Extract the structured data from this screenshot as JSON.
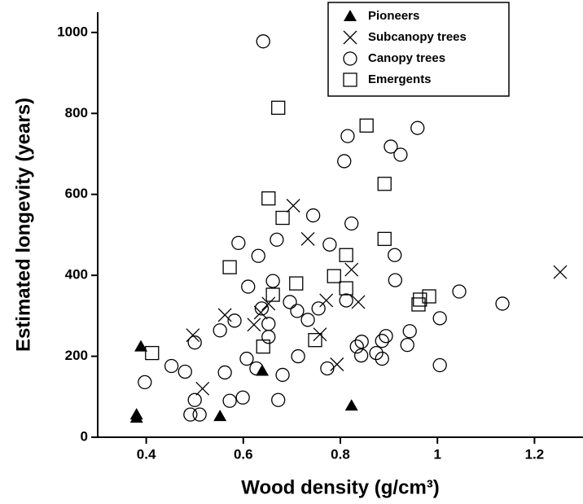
{
  "chart_data": {
    "type": "scatter",
    "x_label": "Wood density (g/cm³)",
    "y_label": "Estimated longevity (years)",
    "xlim": [
      0.3,
      1.3
    ],
    "xticks": [
      0.4,
      0.6,
      0.8,
      1,
      1.2
    ],
    "ylim": [
      0,
      1050
    ],
    "yticks": [
      0,
      200,
      400,
      600,
      800,
      1000
    ],
    "legend": "upper right",
    "series": [
      {
        "name": "Pioneers",
        "marker": "triangle",
        "color": "#000000",
        "x": [
          0.38,
          0.38,
          0.389,
          0.552,
          0.639,
          0.823
        ],
        "values": [
          56,
          48,
          224,
          52,
          164,
          78
        ]
      },
      {
        "name": "Subcanopy trees",
        "marker": "cross",
        "color": "#000000",
        "x": [
          0.496,
          0.516,
          0.562,
          0.622,
          0.636,
          0.652,
          0.703,
          0.733,
          0.758,
          0.771,
          0.793,
          0.823,
          0.837,
          1.253
        ],
        "values": [
          252,
          120,
          302,
          278,
          308,
          330,
          572,
          490,
          254,
          338,
          180,
          414,
          334,
          408
        ]
      },
      {
        "name": "Canopy trees",
        "marker": "circle",
        "color": "#000000",
        "x": [
          0.641,
          0.397,
          0.452,
          0.48,
          0.5,
          0.5,
          0.491,
          0.51,
          0.552,
          0.562,
          0.572,
          0.582,
          0.59,
          0.61,
          0.607,
          0.599,
          0.631,
          0.627,
          0.638,
          0.652,
          0.652,
          0.661,
          0.669,
          0.672,
          0.681,
          0.696,
          0.711,
          0.713,
          0.733,
          0.744,
          0.755,
          0.778,
          0.773,
          0.812,
          0.808,
          0.815,
          0.823,
          0.834,
          0.844,
          0.843,
          0.874,
          0.886,
          0.886,
          0.894,
          0.904,
          0.912,
          0.913,
          0.924,
          0.938,
          0.943,
          0.959,
          1.005,
          1.005,
          1.045,
          1.134
        ],
        "values": [
          978,
          136,
          176,
          162,
          234,
          92,
          56,
          56,
          264,
          160,
          90,
          288,
          480,
          372,
          194,
          98,
          448,
          170,
          318,
          280,
          248,
          386,
          488,
          92,
          154,
          334,
          312,
          200,
          290,
          548,
          318,
          476,
          170,
          338,
          682,
          744,
          528,
          224,
          236,
          202,
          208,
          194,
          238,
          250,
          718,
          450,
          388,
          698,
          228,
          262,
          764,
          294,
          178,
          360,
          330
        ]
      },
      {
        "name": "Emergents",
        "marker": "square",
        "color": "#000000",
        "x": [
          0.412,
          0.572,
          0.641,
          0.652,
          0.661,
          0.672,
          0.681,
          0.709,
          0.748,
          0.787,
          0.812,
          0.812,
          0.854,
          0.891,
          0.891,
          0.961,
          0.964,
          0.983
        ],
        "values": [
          208,
          420,
          224,
          590,
          352,
          814,
          542,
          380,
          240,
          398,
          450,
          368,
          770,
          626,
          490,
          328,
          340,
          348
        ]
      }
    ]
  }
}
